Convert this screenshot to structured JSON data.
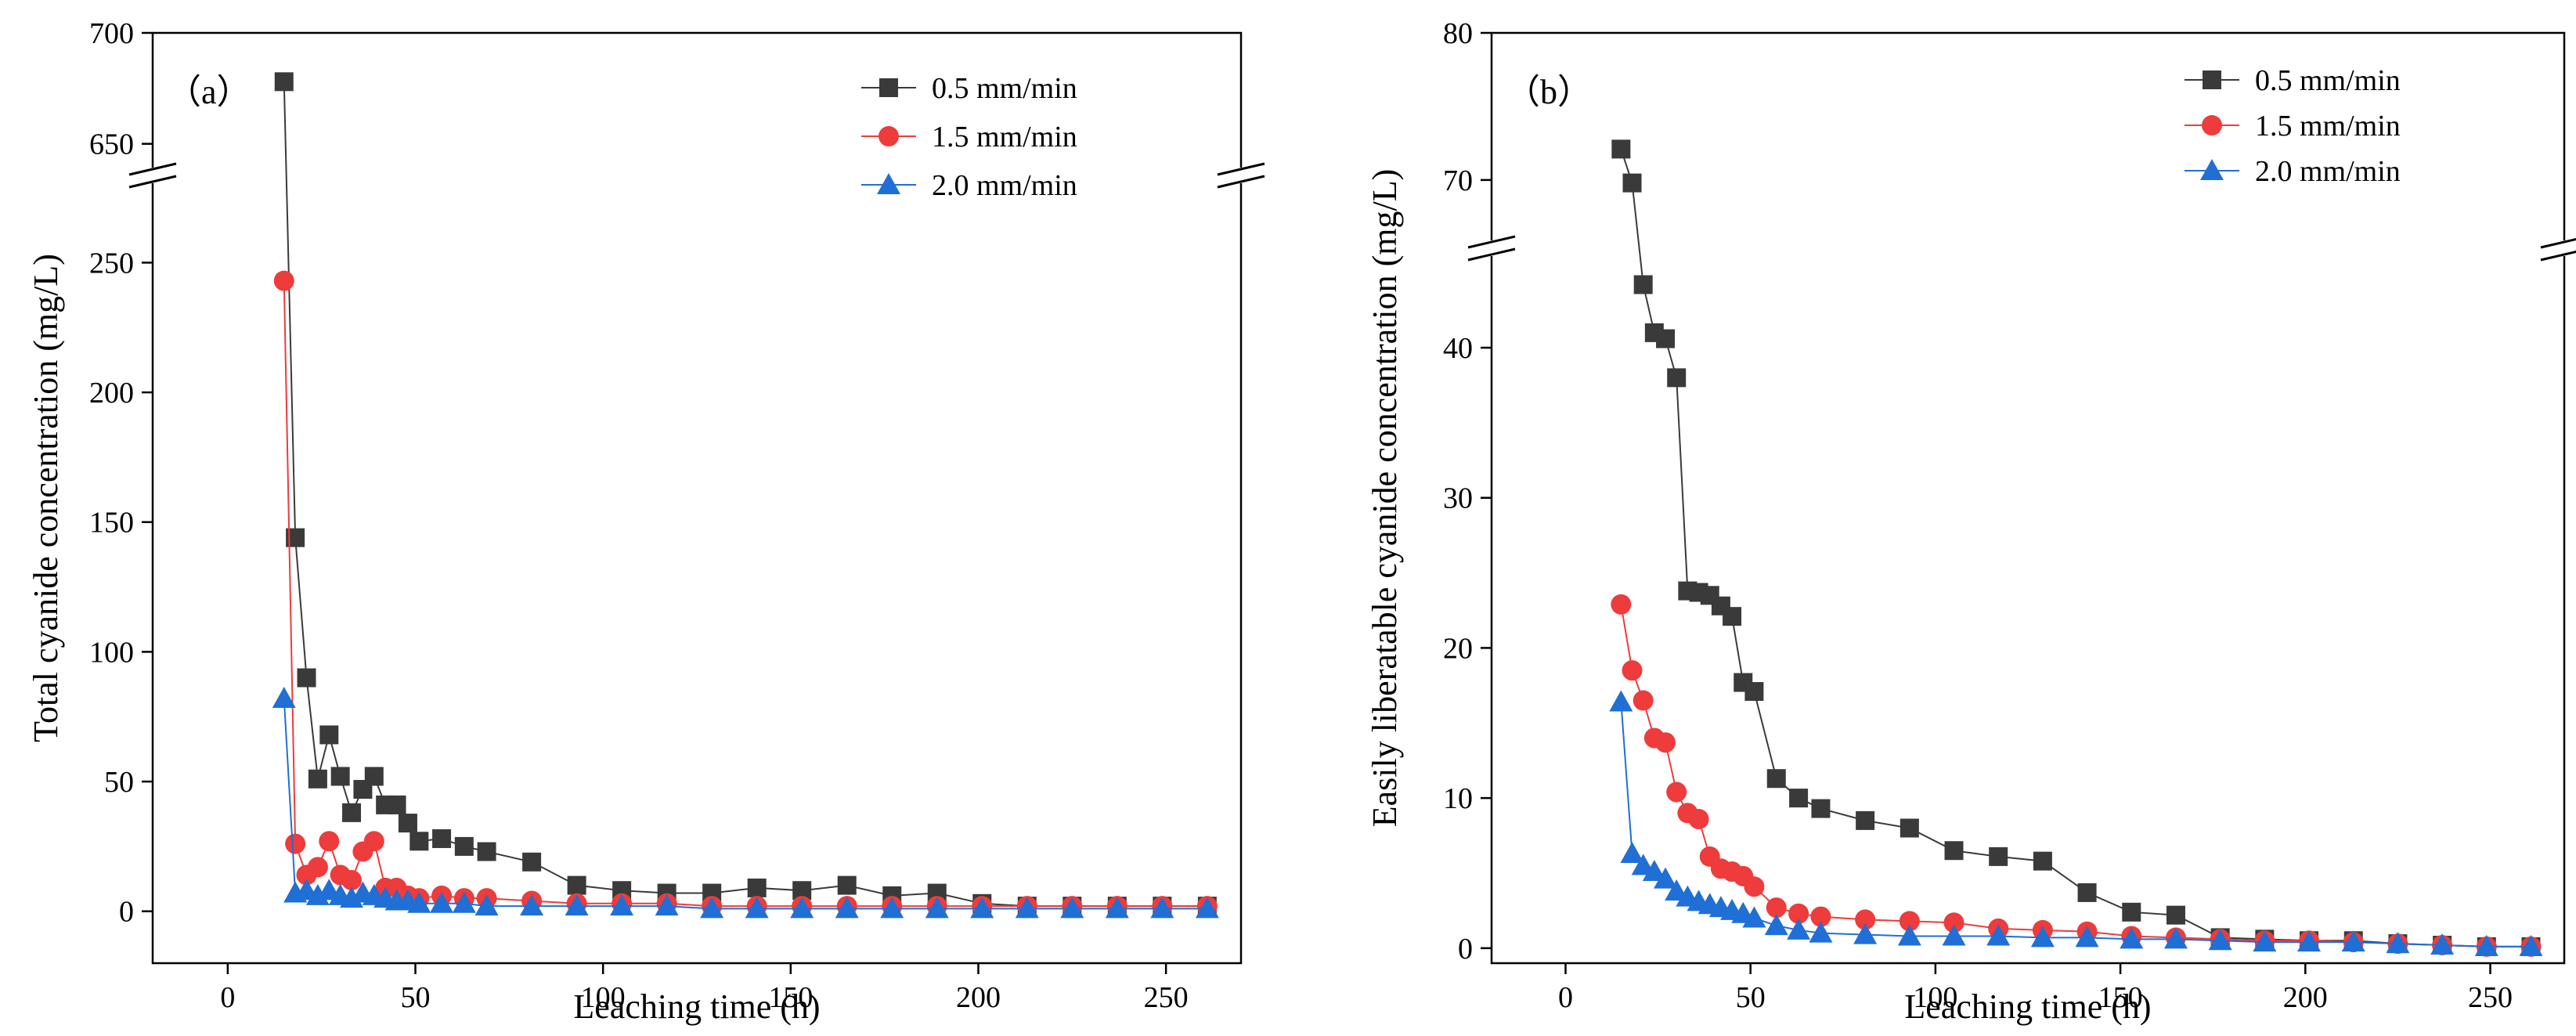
{
  "chart_data": [
    {
      "type": "line",
      "panel_label": "（a）",
      "title": "",
      "xlabel": "Leaching time (h)",
      "ylabel": "Total cyanide concentration (mg/L)",
      "xlim": [
        -20,
        270
      ],
      "ylim_lower": [
        -20,
        280
      ],
      "ylim_upper": [
        640,
        700
      ],
      "axis_break": true,
      "x_ticks": [
        "0",
        "50",
        "100",
        "150",
        "200",
        "250"
      ],
      "x_tick_values": [
        0,
        50,
        100,
        150,
        200,
        250
      ],
      "y_ticks_lower": [
        "0",
        "50",
        "100",
        "150",
        "200",
        "250"
      ],
      "y_tick_values_lower": [
        0,
        50,
        100,
        150,
        200,
        250
      ],
      "y_ticks_upper": [
        "650",
        "700"
      ],
      "y_tick_values_upper": [
        650,
        700
      ],
      "grid": false,
      "legend_position": "top-right",
      "series": [
        {
          "name": "0.5 mm/min",
          "color": "#3a3a3a",
          "marker": "square",
          "x": [
            15,
            18,
            21,
            24,
            27,
            30,
            33,
            36,
            39,
            42,
            45,
            48,
            51,
            57,
            63,
            69,
            81,
            93,
            105,
            117,
            129,
            141,
            153,
            165,
            177,
            189,
            201,
            213,
            225,
            237,
            249,
            261
          ],
          "y": [
            678,
            144,
            90,
            51,
            68,
            52,
            38,
            47,
            52,
            41,
            41,
            34,
            27,
            28,
            25,
            23,
            19,
            10,
            8,
            7,
            7,
            9,
            8,
            10,
            6,
            7,
            3,
            2,
            2,
            2,
            2,
            2
          ]
        },
        {
          "name": "1.5 mm/min",
          "color": "#ee3b3b",
          "marker": "circle",
          "x": [
            15,
            18,
            21,
            24,
            27,
            30,
            33,
            36,
            39,
            42,
            45,
            48,
            51,
            57,
            63,
            69,
            81,
            93,
            105,
            117,
            129,
            141,
            153,
            165,
            177,
            189,
            201,
            213,
            225,
            237,
            249,
            261
          ],
          "y": [
            243,
            26,
            14,
            17,
            27,
            14,
            12,
            23,
            27,
            9,
            9,
            6,
            5,
            6,
            5,
            5,
            4,
            3,
            3,
            3,
            2,
            2,
            2,
            2,
            2,
            2,
            2,
            2,
            2,
            2,
            2,
            2
          ]
        },
        {
          "name": "2.0 mm/min",
          "color": "#1f6fd6",
          "marker": "triangle",
          "x": [
            15,
            18,
            21,
            24,
            27,
            30,
            33,
            36,
            39,
            42,
            45,
            48,
            51,
            57,
            63,
            69,
            81,
            93,
            105,
            117,
            129,
            141,
            153,
            165,
            177,
            189,
            201,
            213,
            225,
            237,
            249,
            261
          ],
          "y": [
            82,
            7,
            8,
            6,
            8,
            6,
            5,
            7,
            6,
            5,
            4,
            4,
            3,
            3,
            3,
            2,
            2,
            2,
            2,
            2,
            1,
            1,
            1,
            1,
            1,
            1,
            1,
            1,
            1,
            1,
            1,
            1
          ]
        }
      ]
    },
    {
      "type": "line",
      "panel_label": "（b）",
      "title": "",
      "xlabel": "Leaching time (h)",
      "ylabel": "Easily liberatable cyanide concentration (mg/L)",
      "xlim": [
        -20,
        270
      ],
      "ylim_lower": [
        -1,
        46
      ],
      "ylim_upper": [
        66,
        80
      ],
      "axis_break": true,
      "x_ticks": [
        "0",
        "50",
        "100",
        "150",
        "200",
        "250"
      ],
      "x_tick_values": [
        0,
        50,
        100,
        150,
        200,
        250
      ],
      "y_ticks_lower": [
        "0",
        "10",
        "20",
        "30",
        "40"
      ],
      "y_tick_values_lower": [
        0,
        10,
        20,
        30,
        40
      ],
      "y_ticks_upper": [
        "70",
        "80"
      ],
      "y_tick_values_upper": [
        70,
        80
      ],
      "grid": false,
      "legend_position": "top-right",
      "series": [
        {
          "name": "0.5 mm/min",
          "color": "#3a3a3a",
          "marker": "square",
          "x": [
            15,
            18,
            21,
            24,
            27,
            30,
            33,
            36,
            39,
            42,
            45,
            48,
            51,
            57,
            63,
            69,
            81,
            93,
            105,
            117,
            129,
            141,
            153,
            165,
            177,
            189,
            201,
            213,
            225,
            237,
            249,
            261
          ],
          "y": [
            72.1,
            69.8,
            44.2,
            41.0,
            40.6,
            38.0,
            23.8,
            23.7,
            23.5,
            22.8,
            22.1,
            17.7,
            17.1,
            11.3,
            10.0,
            9.3,
            8.5,
            8.0,
            6.5,
            6.1,
            5.8,
            3.7,
            2.4,
            2.2,
            0.7,
            0.6,
            0.5,
            0.5,
            0.3,
            0.2,
            0.1,
            0.1
          ]
        },
        {
          "name": "1.5 mm/min",
          "color": "#ee3b3b",
          "marker": "circle",
          "x": [
            15,
            18,
            21,
            24,
            27,
            30,
            33,
            36,
            39,
            42,
            45,
            48,
            51,
            57,
            63,
            69,
            81,
            93,
            105,
            117,
            129,
            141,
            153,
            165,
            177,
            189,
            201,
            213,
            225,
            237,
            249,
            261
          ],
          "y": [
            22.9,
            18.5,
            16.5,
            14.0,
            13.7,
            10.4,
            9.0,
            8.6,
            6.1,
            5.3,
            5.1,
            4.8,
            4.1,
            2.7,
            2.3,
            2.1,
            1.9,
            1.8,
            1.7,
            1.3,
            1.2,
            1.1,
            0.8,
            0.7,
            0.6,
            0.5,
            0.5,
            0.4,
            0.3,
            0.2,
            0.1,
            0.1
          ]
        },
        {
          "name": "2.0 mm/min",
          "color": "#1f6fd6",
          "marker": "triangle",
          "x": [
            15,
            18,
            21,
            24,
            27,
            30,
            33,
            36,
            39,
            42,
            45,
            48,
            51,
            57,
            63,
            69,
            81,
            93,
            105,
            117,
            129,
            141,
            153,
            165,
            177,
            189,
            201,
            213,
            225,
            237,
            249,
            261
          ],
          "y": [
            16.4,
            6.3,
            5.5,
            5.1,
            4.6,
            3.8,
            3.4,
            3.1,
            2.9,
            2.7,
            2.5,
            2.3,
            2.0,
            1.5,
            1.2,
            1.0,
            0.9,
            0.8,
            0.8,
            0.8,
            0.7,
            0.7,
            0.6,
            0.6,
            0.5,
            0.4,
            0.4,
            0.4,
            0.3,
            0.2,
            0.1,
            0.1
          ]
        }
      ]
    }
  ]
}
